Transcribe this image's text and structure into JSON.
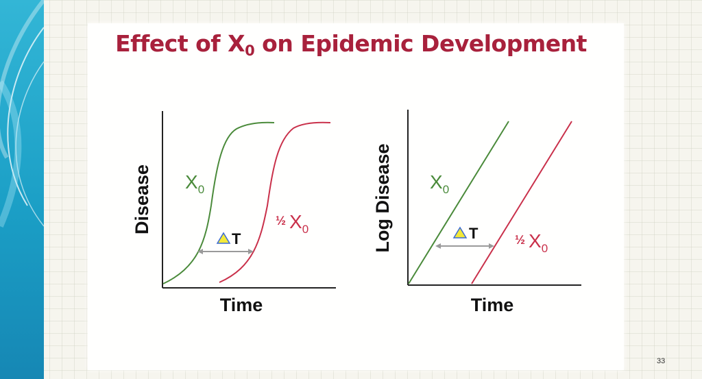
{
  "slide": {
    "title_main": "Effect of X",
    "title_sub": "0",
    "title_rest": " on Epidemic Development",
    "page_number": "33"
  },
  "left_plot": {
    "ylabel": "Disease",
    "xlabel": "Time",
    "curve1_label": "X",
    "curve1_sub": "0",
    "curve2_frac": "½",
    "curve2_label": "X",
    "curve2_sub": "0",
    "delta_label": "T"
  },
  "right_plot": {
    "ylabel": "Log Disease",
    "xlabel": "Time",
    "curve1_label": "X",
    "curve1_sub": "0",
    "curve2_frac": "½",
    "curve2_label": "X",
    "curve2_sub": "0",
    "delta_label": "T"
  },
  "colors": {
    "x0_curve": "#4a8a3a",
    "half_x0_curve": "#c9304a",
    "title": "#a8213c",
    "delta_triangle": "#f3e93a",
    "arrow": "#9a9a9a"
  }
}
